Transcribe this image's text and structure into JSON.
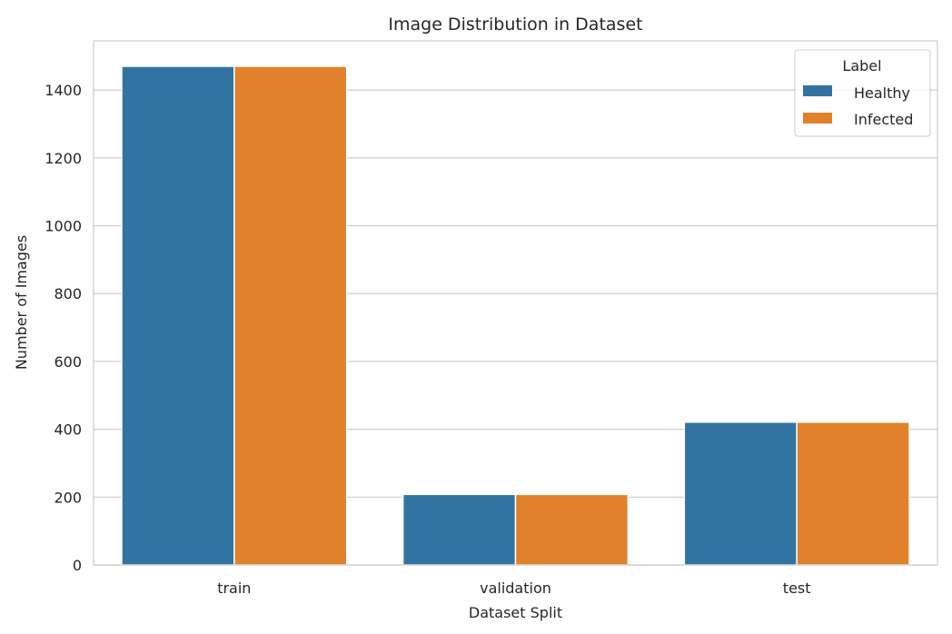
{
  "chart_data": {
    "type": "bar",
    "title": "Image Distribution in Dataset",
    "xlabel": "Dataset Split",
    "ylabel": "Number of Images",
    "categories": [
      "train",
      "validation",
      "test"
    ],
    "series": [
      {
        "name": "Healthy",
        "color": "#3274a1",
        "values": [
          1470,
          208,
          421
        ]
      },
      {
        "name": "Infected",
        "color": "#e1812c",
        "values": [
          1470,
          208,
          421
        ]
      }
    ],
    "ylim": [
      0,
      1545
    ],
    "yticks": [
      0,
      200,
      400,
      600,
      800,
      1000,
      1200,
      1400
    ],
    "grid": true,
    "legend": {
      "title": "Label",
      "placement": "top-right"
    }
  }
}
